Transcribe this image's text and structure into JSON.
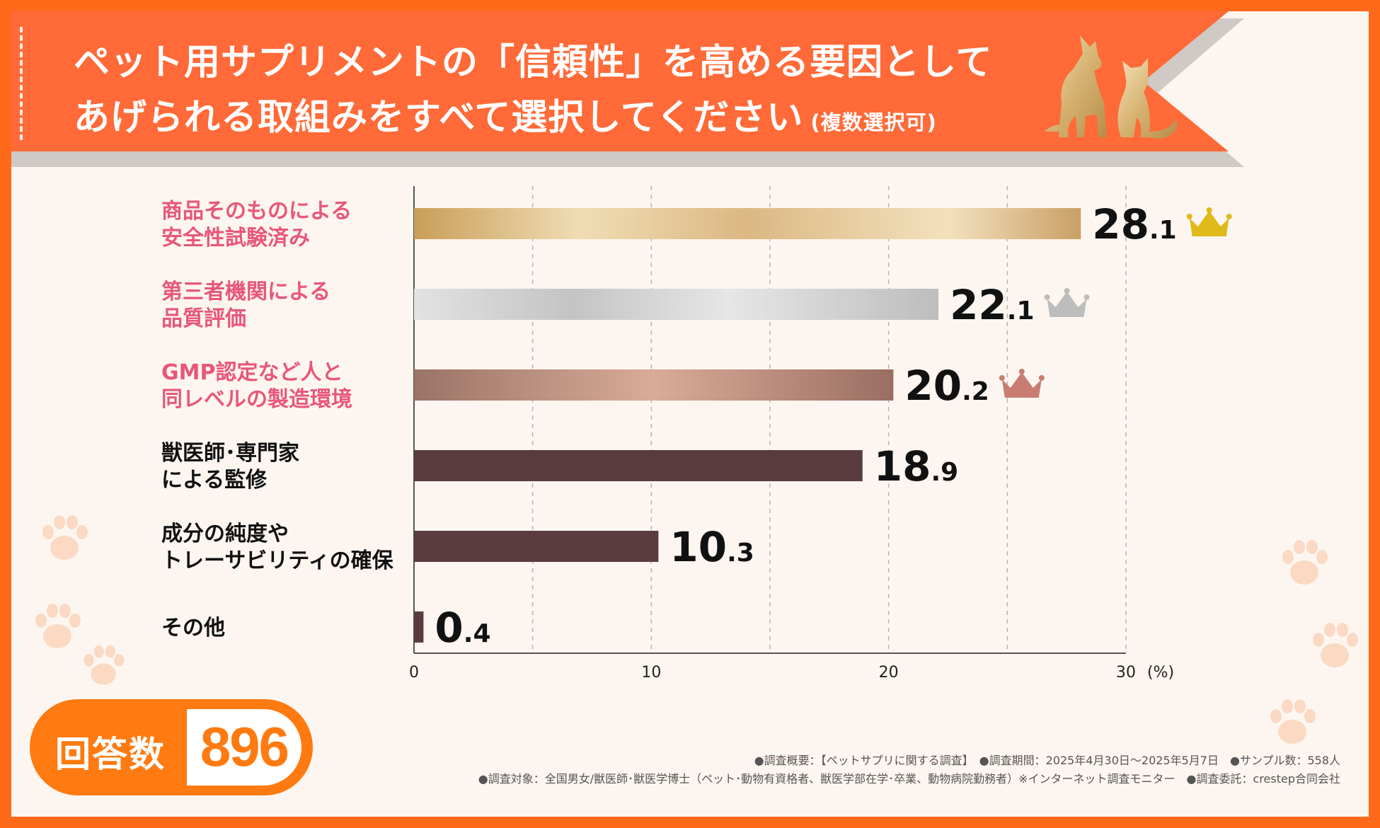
{
  "header": {
    "title_line1": "ペット用サプリメントの「信頼性」を高める要因として",
    "title_line2": "あげられる取組みをすべて選択してください",
    "title_note": "(複数選択可)"
  },
  "colors": {
    "frame": "#ff6a1a",
    "banner": "#ff6a38",
    "highlight_label": "#e8577a",
    "normal_label": "#111111",
    "bar_gold": "#d9b27a",
    "bar_silver": "#cfcfcf",
    "bar_bronze": "#b88a78",
    "bar_other": "#5a3c40",
    "crown_gold": "#e0b91a",
    "crown_silver": "#bdbdbd",
    "crown_bronze": "#c97d72"
  },
  "chart_data": {
    "type": "bar",
    "orientation": "horizontal",
    "unit": "(%)",
    "xlim": [
      0,
      30
    ],
    "x_ticks": [
      "0",
      "10",
      "20",
      "30"
    ],
    "grid": true,
    "categories": [
      [
        "商品そのものによる",
        "安全性試験済み"
      ],
      [
        "第三者機関による",
        "品質評価"
      ],
      [
        "GMP認定など人と",
        "同レベルの製造環境"
      ],
      [
        "獣医師･専門家",
        "による監修"
      ],
      [
        "成分の純度や",
        "トレーサビリティの確保"
      ],
      [
        "その他"
      ]
    ],
    "values": [
      28.1,
      22.1,
      20.2,
      18.9,
      10.3,
      0.4
    ],
    "value_labels": [
      {
        "int": "28",
        "dec": ".1"
      },
      {
        "int": "22",
        "dec": ".1"
      },
      {
        "int": "20",
        "dec": ".2"
      },
      {
        "int": "18",
        "dec": ".9"
      },
      {
        "int": "10",
        "dec": ".3"
      },
      {
        "int": "0",
        "dec": ".4"
      }
    ],
    "ranks": [
      "gold",
      "silver",
      "bronze",
      null,
      null,
      null
    ],
    "highlight": [
      true,
      true,
      true,
      false,
      false,
      false
    ]
  },
  "responses": {
    "label": "回答数",
    "value": "896"
  },
  "footnotes": {
    "line1": "●調査概要：【ペットサプリに関する調査】　●調査期間：2025年4月30日～2025年5月7日　●サンプル数：558人",
    "line2": "●調査対象：全国男女/獣医師･獣医学博士（ペット･動物有資格者、獣医学部在学･卒業、動物病院勤務者）※インターネット調査モニター　●調査委託：crestep合同会社"
  },
  "icons": [
    "paw-icon",
    "crown-icon",
    "dog-cat-silhouette-icon"
  ]
}
